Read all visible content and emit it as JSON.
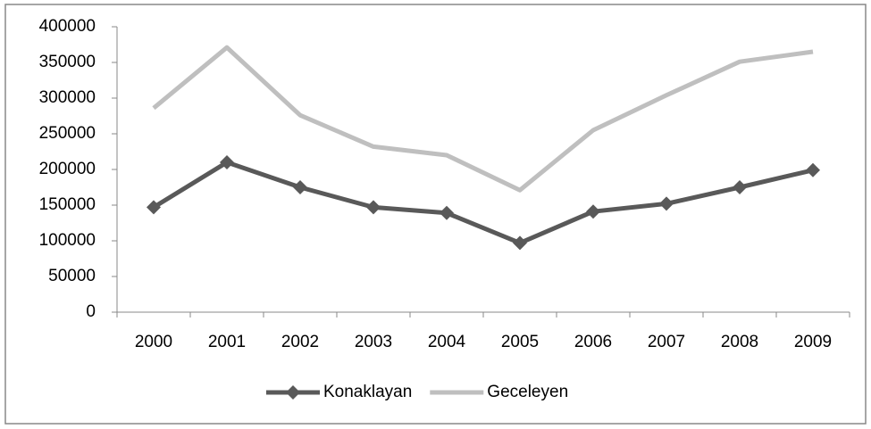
{
  "chart_data": {
    "type": "line",
    "categories": [
      "2000",
      "2001",
      "2002",
      "2003",
      "2004",
      "2005",
      "2006",
      "2007",
      "2008",
      "2009"
    ],
    "series": [
      {
        "name": "Konaklayan",
        "color": "#595959",
        "marker": "diamond",
        "values": [
          147000,
          210000,
          175000,
          147000,
          139000,
          97000,
          141000,
          152000,
          175000,
          199000
        ]
      },
      {
        "name": "Geceleyen",
        "color": "#bfbfbf",
        "values": [
          286000,
          371000,
          276000,
          232000,
          220000,
          171000,
          255000,
          304000,
          351000,
          365000
        ]
      }
    ],
    "ylim": [
      0,
      400000
    ],
    "yticks": [
      0,
      50000,
      100000,
      150000,
      200000,
      250000,
      300000,
      350000,
      400000
    ],
    "grid": false,
    "legend": "bottom"
  }
}
